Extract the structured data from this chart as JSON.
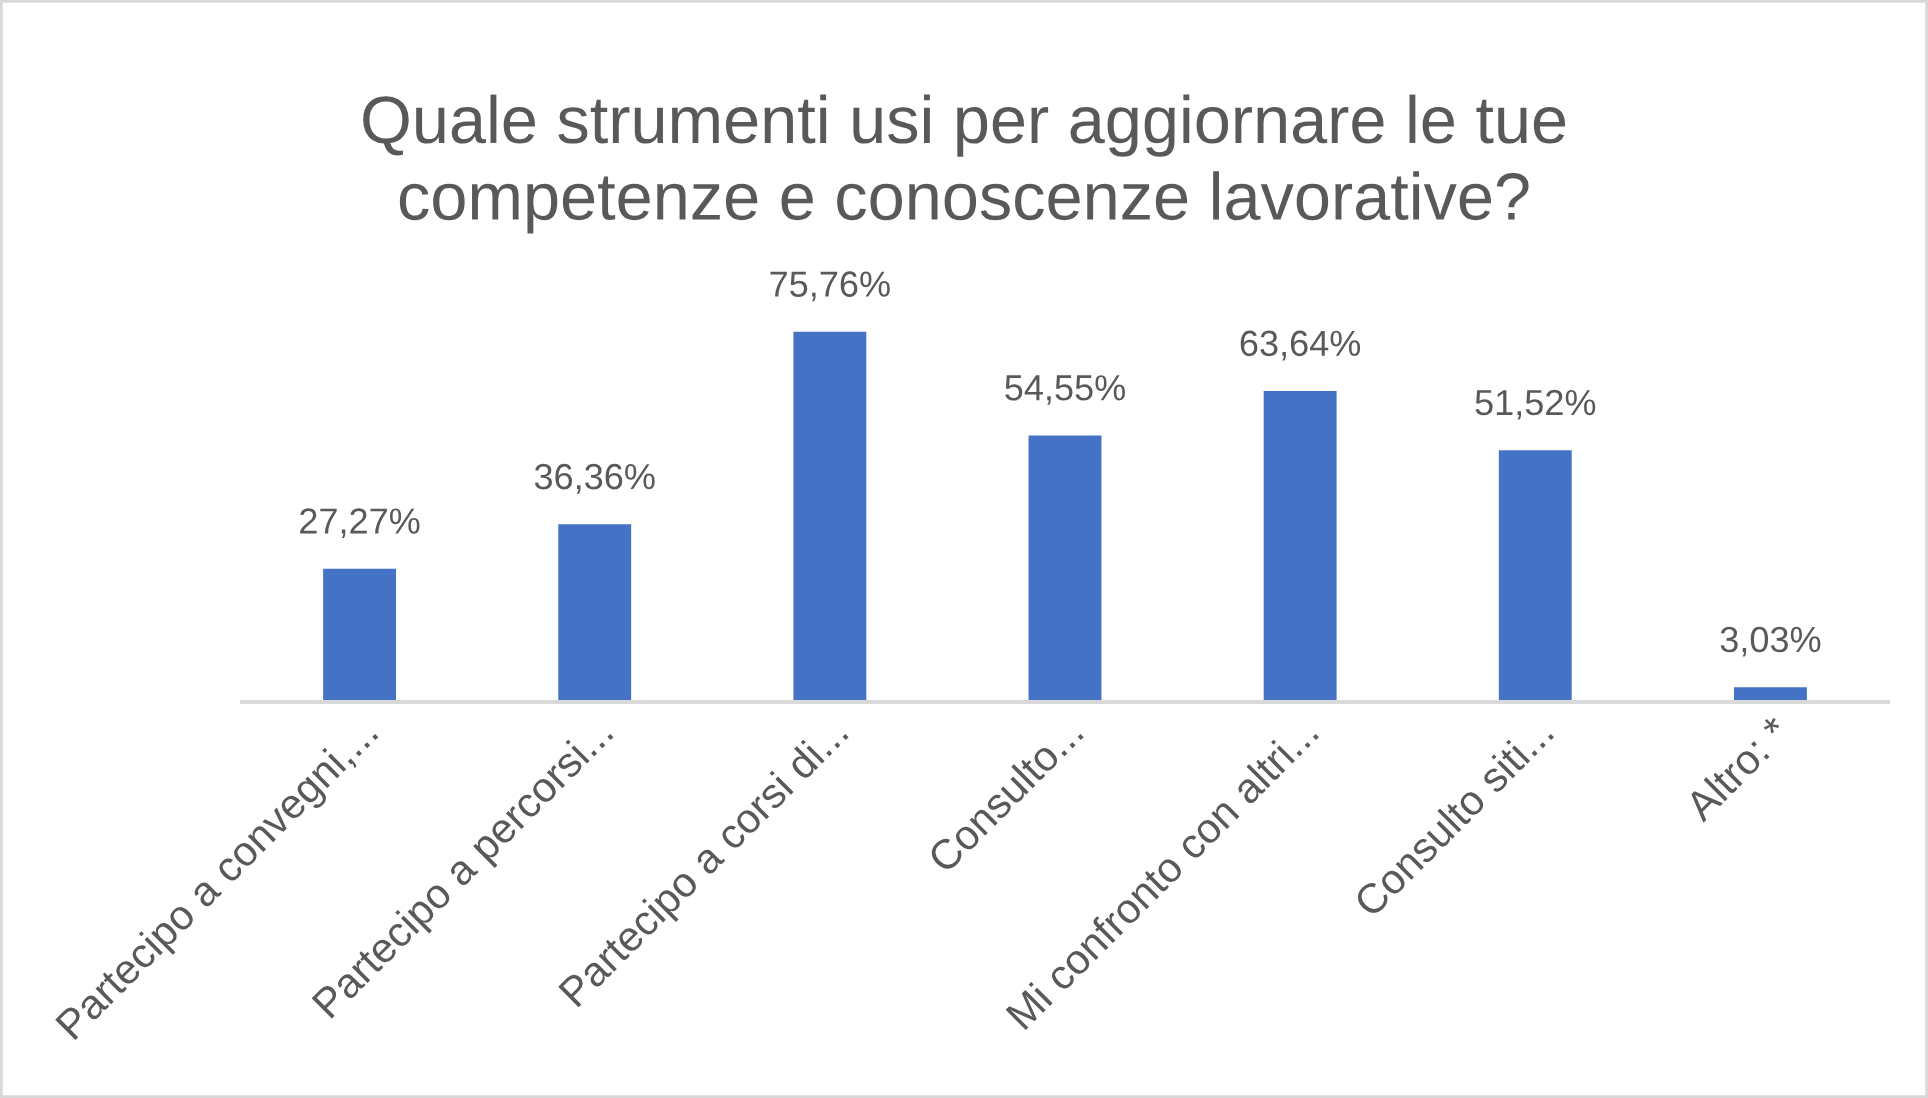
{
  "chart_data": {
    "type": "bar",
    "title": "Quale strumenti usi per aggiornare le tue\ncompetenze e conoscenze lavorative?",
    "categories": [
      "Partecipo a convegni,...",
      "Partecipo a percorsi...",
      "Partecipo a corsi di...",
      "Consulto...",
      "Mi confronto con altri...",
      "Consulto siti...",
      "Altro: *"
    ],
    "values": [
      27.27,
      36.36,
      75.76,
      54.55,
      63.64,
      51.52,
      3.03
    ],
    "value_labels": [
      "27,27%",
      "36,36%",
      "75,76%",
      "54,55%",
      "63,64%",
      "51,52%",
      "3,03%"
    ],
    "color": "#4472c4"
  }
}
